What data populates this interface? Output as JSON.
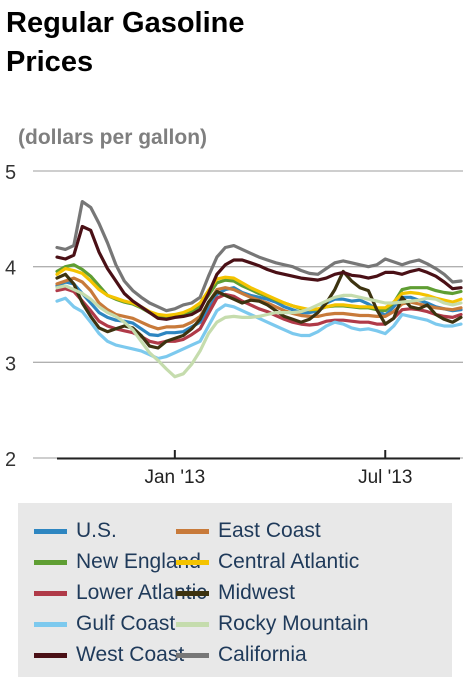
{
  "chart_data": {
    "type": "line",
    "title": [
      "Regular Gasoline",
      "Prices"
    ],
    "subtitle": "(dollars per gallon)",
    "ylim": [
      2,
      5
    ],
    "yticks": [
      2,
      3,
      4,
      5
    ],
    "xlim": [
      "2012-10-01",
      "2013-09-02"
    ],
    "xticks": [
      {
        "date": "2013-01-07",
        "label": "Jan '13"
      },
      {
        "date": "2013-07-01",
        "label": "Jul '13"
      }
    ],
    "grid": true,
    "legend_position": "bottom",
    "x": [
      "2012-10-01",
      "2012-10-08",
      "2012-10-15",
      "2012-10-22",
      "2012-10-29",
      "2012-11-05",
      "2012-11-12",
      "2012-11-19",
      "2012-11-26",
      "2012-12-03",
      "2012-12-10",
      "2012-12-17",
      "2012-12-24",
      "2012-12-31",
      "2013-01-07",
      "2013-01-14",
      "2013-01-21",
      "2013-01-28",
      "2013-02-04",
      "2013-02-11",
      "2013-02-18",
      "2013-02-25",
      "2013-03-04",
      "2013-03-11",
      "2013-03-18",
      "2013-03-25",
      "2013-04-01",
      "2013-04-08",
      "2013-04-15",
      "2013-04-22",
      "2013-04-29",
      "2013-05-06",
      "2013-05-13",
      "2013-05-20",
      "2013-05-27",
      "2013-06-03",
      "2013-06-10",
      "2013-06-17",
      "2013-06-24",
      "2013-07-01",
      "2013-07-08",
      "2013-07-15",
      "2013-07-22",
      "2013-07-29",
      "2013-08-05",
      "2013-08-12",
      "2013-08-19",
      "2013-08-26",
      "2013-09-02"
    ],
    "series": [
      {
        "name": "U.S.",
        "color": "#2e86c1",
        "values": [
          3.8,
          3.84,
          3.82,
          3.72,
          3.62,
          3.52,
          3.47,
          3.44,
          3.43,
          3.41,
          3.35,
          3.29,
          3.28,
          3.31,
          3.31,
          3.32,
          3.37,
          3.42,
          3.57,
          3.71,
          3.76,
          3.78,
          3.73,
          3.7,
          3.68,
          3.66,
          3.63,
          3.58,
          3.55,
          3.52,
          3.52,
          3.54,
          3.62,
          3.66,
          3.66,
          3.64,
          3.65,
          3.61,
          3.55,
          3.49,
          3.58,
          3.68,
          3.68,
          3.65,
          3.62,
          3.58,
          3.56,
          3.54,
          3.55
        ]
      },
      {
        "name": "East Coast",
        "color": "#c87a3a",
        "values": [
          3.82,
          3.85,
          3.88,
          3.84,
          3.75,
          3.62,
          3.55,
          3.5,
          3.48,
          3.46,
          3.42,
          3.38,
          3.35,
          3.37,
          3.37,
          3.38,
          3.42,
          3.48,
          3.62,
          3.76,
          3.78,
          3.76,
          3.72,
          3.68,
          3.65,
          3.62,
          3.58,
          3.54,
          3.51,
          3.49,
          3.48,
          3.48,
          3.5,
          3.51,
          3.51,
          3.5,
          3.49,
          3.49,
          3.48,
          3.48,
          3.53,
          3.61,
          3.63,
          3.61,
          3.59,
          3.57,
          3.56,
          3.55,
          3.57
        ]
      },
      {
        "name": "New England",
        "color": "#5f9e33",
        "values": [
          3.95,
          4.0,
          4.02,
          3.97,
          3.9,
          3.8,
          3.7,
          3.66,
          3.63,
          3.61,
          3.57,
          3.52,
          3.49,
          3.48,
          3.48,
          3.5,
          3.53,
          3.58,
          3.7,
          3.83,
          3.86,
          3.85,
          3.8,
          3.76,
          3.72,
          3.69,
          3.65,
          3.62,
          3.59,
          3.56,
          3.55,
          3.55,
          3.58,
          3.59,
          3.59,
          3.58,
          3.57,
          3.57,
          3.55,
          3.54,
          3.62,
          3.76,
          3.78,
          3.78,
          3.78,
          3.75,
          3.73,
          3.72,
          3.74
        ]
      },
      {
        "name": "Central Atlantic",
        "color": "#f4c300",
        "values": [
          3.92,
          3.98,
          3.96,
          3.93,
          3.85,
          3.76,
          3.7,
          3.67,
          3.64,
          3.62,
          3.58,
          3.53,
          3.5,
          3.49,
          3.5,
          3.52,
          3.56,
          3.62,
          3.75,
          3.87,
          3.89,
          3.88,
          3.83,
          3.78,
          3.74,
          3.7,
          3.66,
          3.62,
          3.59,
          3.57,
          3.55,
          3.56,
          3.58,
          3.6,
          3.6,
          3.59,
          3.58,
          3.58,
          3.57,
          3.57,
          3.63,
          3.72,
          3.73,
          3.72,
          3.7,
          3.67,
          3.65,
          3.63,
          3.66
        ]
      },
      {
        "name": "Lower Atlantic",
        "color": "#b03a48",
        "values": [
          3.75,
          3.77,
          3.74,
          3.64,
          3.54,
          3.43,
          3.38,
          3.35,
          3.33,
          3.31,
          3.27,
          3.22,
          3.2,
          3.22,
          3.22,
          3.24,
          3.29,
          3.35,
          3.51,
          3.67,
          3.71,
          3.69,
          3.64,
          3.6,
          3.56,
          3.53,
          3.49,
          3.45,
          3.42,
          3.4,
          3.39,
          3.4,
          3.43,
          3.44,
          3.44,
          3.43,
          3.42,
          3.42,
          3.4,
          3.4,
          3.46,
          3.55,
          3.56,
          3.55,
          3.53,
          3.5,
          3.48,
          3.47,
          3.5
        ]
      },
      {
        "name": "Midwest",
        "color": "#3d3310",
        "values": [
          3.88,
          3.92,
          3.82,
          3.62,
          3.48,
          3.36,
          3.32,
          3.35,
          3.38,
          3.36,
          3.28,
          3.17,
          3.15,
          3.22,
          3.25,
          3.28,
          3.35,
          3.45,
          3.63,
          3.74,
          3.7,
          3.66,
          3.62,
          3.65,
          3.64,
          3.6,
          3.54,
          3.48,
          3.45,
          3.42,
          3.45,
          3.52,
          3.62,
          3.76,
          3.95,
          3.85,
          3.78,
          3.75,
          3.55,
          3.4,
          3.46,
          3.68,
          3.58,
          3.56,
          3.6,
          3.5,
          3.45,
          3.42,
          3.47
        ]
      },
      {
        "name": "Gulf Coast",
        "color": "#7cc9ee",
        "values": [
          3.64,
          3.67,
          3.58,
          3.53,
          3.42,
          3.3,
          3.22,
          3.18,
          3.16,
          3.14,
          3.12,
          3.08,
          3.04,
          3.06,
          3.1,
          3.14,
          3.18,
          3.22,
          3.38,
          3.54,
          3.6,
          3.58,
          3.54,
          3.5,
          3.46,
          3.42,
          3.38,
          3.34,
          3.3,
          3.28,
          3.28,
          3.32,
          3.38,
          3.42,
          3.4,
          3.36,
          3.34,
          3.35,
          3.33,
          3.3,
          3.38,
          3.5,
          3.48,
          3.46,
          3.44,
          3.4,
          3.38,
          3.38,
          3.4
        ]
      },
      {
        "name": "Rocky Mountain",
        "color": "#c5dcad",
        "values": [
          3.78,
          3.8,
          3.76,
          3.72,
          3.66,
          3.58,
          3.52,
          3.48,
          3.42,
          3.34,
          3.22,
          3.1,
          3.02,
          2.93,
          2.85,
          2.88,
          2.98,
          3.12,
          3.3,
          3.42,
          3.47,
          3.48,
          3.47,
          3.47,
          3.48,
          3.5,
          3.52,
          3.52,
          3.52,
          3.53,
          3.56,
          3.6,
          3.64,
          3.68,
          3.7,
          3.7,
          3.68,
          3.66,
          3.64,
          3.62,
          3.62,
          3.63,
          3.64,
          3.65,
          3.67,
          3.66,
          3.62,
          3.6,
          3.62
        ]
      },
      {
        "name": "West Coast",
        "color": "#4a1016",
        "values": [
          4.1,
          4.08,
          4.12,
          4.42,
          4.38,
          4.15,
          3.98,
          3.85,
          3.72,
          3.64,
          3.58,
          3.52,
          3.46,
          3.45,
          3.47,
          3.48,
          3.5,
          3.55,
          3.72,
          3.92,
          4.02,
          4.07,
          4.07,
          4.04,
          4.01,
          3.97,
          3.94,
          3.92,
          3.9,
          3.88,
          3.87,
          3.86,
          3.88,
          3.92,
          3.94,
          3.91,
          3.9,
          3.88,
          3.9,
          3.94,
          3.94,
          3.92,
          3.95,
          3.97,
          3.94,
          3.9,
          3.84,
          3.77,
          3.78
        ]
      },
      {
        "name": "California",
        "color": "#777777",
        "values": [
          4.2,
          4.18,
          4.22,
          4.68,
          4.62,
          4.45,
          4.25,
          4.02,
          3.85,
          3.75,
          3.68,
          3.62,
          3.58,
          3.54,
          3.56,
          3.6,
          3.62,
          3.68,
          3.9,
          4.1,
          4.2,
          4.22,
          4.18,
          4.14,
          4.1,
          4.07,
          4.04,
          4.02,
          4.0,
          3.96,
          3.93,
          3.92,
          3.98,
          4.04,
          4.06,
          4.04,
          4.02,
          4.0,
          4.02,
          4.08,
          4.05,
          4.02,
          4.05,
          4.07,
          4.03,
          3.98,
          3.92,
          3.84,
          3.85
        ]
      }
    ]
  }
}
